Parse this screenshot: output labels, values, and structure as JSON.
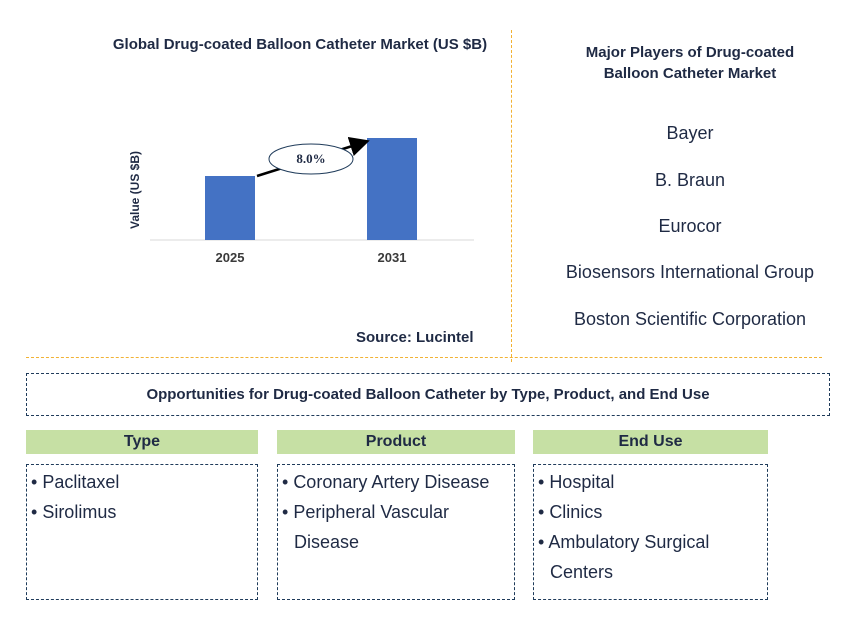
{
  "chart_data": {
    "type": "bar",
    "title": "Global Drug-coated Balloon Catheter Market (US $B)",
    "ylabel": "Value (US $B)",
    "xlabel": "",
    "categories": [
      "2025",
      "2031"
    ],
    "values": [
      0.64,
      1.02
    ],
    "ylim": [
      0,
      1.2
    ],
    "bar_color": "#4472c4",
    "annotation": {
      "label": "8.0%",
      "type": "CAGR arrow from 2025 bar to 2031 bar"
    },
    "grid": false,
    "source": "Source: Lucintel"
  },
  "players": {
    "title": "Major Players of Drug-coated Balloon Catheter Market",
    "items": [
      "Bayer",
      "B. Braun",
      "Eurocor",
      "Biosensors International Group",
      "Boston Scientific Corporation"
    ]
  },
  "opportunities": {
    "title": "Opportunities for Drug-coated Balloon Catheter by Type, Product, and End Use",
    "columns": [
      {
        "heading": "Type",
        "items": [
          "Paclitaxel",
          "Sirolimus"
        ]
      },
      {
        "heading": "Product",
        "items": [
          "Coronary Artery Disease",
          "Peripheral Vascular Disease"
        ]
      },
      {
        "heading": "End Use",
        "items": [
          "Hospital",
          "Clinics",
          "Ambulatory Surgical Centers"
        ]
      }
    ]
  },
  "colors": {
    "accent_green": "#c6e0a4",
    "divider_orange": "#f2b233",
    "bar_blue": "#4472c4"
  }
}
